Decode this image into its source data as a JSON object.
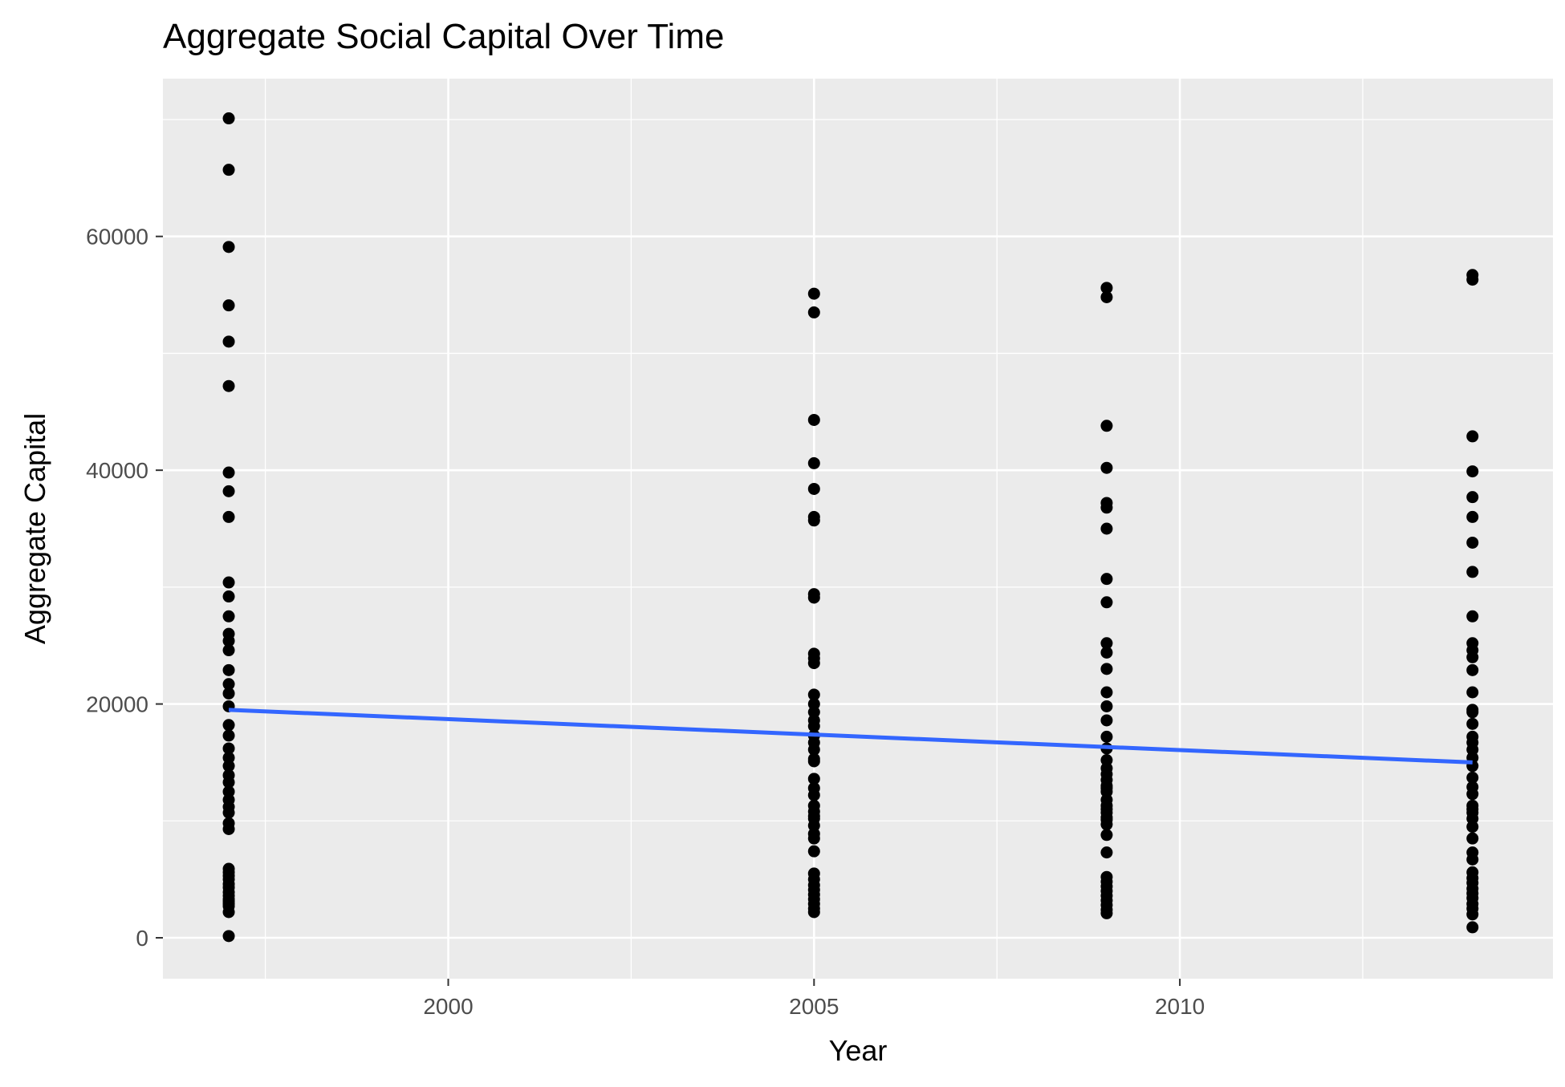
{
  "chart_data": {
    "type": "scatter",
    "title": "Aggregate Social Capital Over Time",
    "xlabel": "Year",
    "ylabel": "Aggregate Capital",
    "xlim": [
      1996.1,
      2015.1
    ],
    "ylim": [
      -3500,
      73500
    ],
    "x_ticks": [
      2000,
      2005,
      2010
    ],
    "y_ticks": [
      0,
      20000,
      40000,
      60000
    ],
    "x_tick_labels": [
      "2000",
      "2005",
      "2010"
    ],
    "y_tick_labels": [
      "0",
      "20000",
      "40000",
      "60000"
    ],
    "grid": true,
    "colors": {
      "panel": "#ebebeb",
      "grid": "#ffffff",
      "points": "#000000",
      "trend": "#3366ff"
    },
    "series": [
      {
        "x": [
          1997,
          1997,
          1997,
          1997,
          1997,
          1997,
          1997,
          1997,
          1997,
          1997,
          1997,
          1997,
          1997,
          1997,
          1997,
          1997,
          1997,
          1997,
          1997,
          1997,
          1997,
          1997,
          1997,
          1997,
          1997,
          1997,
          1997,
          1997,
          1997,
          1997,
          1997,
          1997,
          1997,
          1997,
          1997,
          1997,
          1997,
          1997,
          1997,
          1997,
          1997,
          1997,
          1997,
          1997,
          1997,
          1997,
          2005,
          2005,
          2005,
          2005,
          2005,
          2005,
          2005,
          2005,
          2005,
          2005,
          2005,
          2005,
          2005,
          2005,
          2005,
          2005,
          2005,
          2005,
          2005,
          2005,
          2005,
          2005,
          2005,
          2005,
          2005,
          2005,
          2005,
          2005,
          2005,
          2005,
          2005,
          2005,
          2005,
          2005,
          2005,
          2005,
          2005,
          2005,
          2005,
          2005,
          2005,
          2005,
          2009,
          2009,
          2009,
          2009,
          2009,
          2009,
          2009,
          2009,
          2009,
          2009,
          2009,
          2009,
          2009,
          2009,
          2009,
          2009,
          2009,
          2009,
          2009,
          2009,
          2009,
          2009,
          2009,
          2009,
          2009,
          2009,
          2009,
          2009,
          2009,
          2009,
          2009,
          2009,
          2009,
          2009,
          2009,
          2009,
          2009,
          2009,
          2009,
          2009,
          2009,
          2009,
          2014,
          2014,
          2014,
          2014,
          2014,
          2014,
          2014,
          2014,
          2014,
          2014,
          2014,
          2014,
          2014,
          2014,
          2014,
          2014,
          2014,
          2014,
          2014,
          2014,
          2014,
          2014,
          2014,
          2014,
          2014,
          2014,
          2014,
          2014,
          2014,
          2014,
          2014,
          2014,
          2014,
          2014,
          2014,
          2014,
          2014,
          2014,
          2014,
          2014,
          2014,
          2014,
          2014
        ],
        "y": [
          70100,
          65700,
          59100,
          54100,
          51000,
          47200,
          39800,
          38200,
          36000,
          30400,
          29200,
          27500,
          26000,
          25400,
          24600,
          22900,
          21700,
          20900,
          19800,
          18200,
          17300,
          16200,
          15400,
          14700,
          13900,
          13300,
          12500,
          11800,
          11200,
          10700,
          9800,
          9300,
          5900,
          5600,
          5300,
          5000,
          4600,
          4300,
          3900,
          3600,
          3300,
          3100,
          2900,
          2700,
          150,
          2200,
          55100,
          53500,
          44300,
          40600,
          38400,
          36000,
          35700,
          29400,
          29100,
          24300,
          23900,
          23500,
          20800,
          20000,
          19300,
          18600,
          17300,
          16100,
          15100,
          13600,
          12800,
          12200,
          11300,
          10800,
          10200,
          9600,
          8900,
          8500,
          7400,
          5500,
          5000,
          4500,
          4100,
          3700,
          3300,
          2900,
          2500,
          2200,
          15300,
          16700,
          18100,
          10400,
          55600,
          54800,
          43800,
          40200,
          37200,
          36800,
          35000,
          30700,
          28700,
          25200,
          24400,
          23000,
          21000,
          19800,
          18600,
          17200,
          16200,
          15200,
          14000,
          13500,
          13000,
          12500,
          11800,
          11300,
          10700,
          10100,
          9700,
          8800,
          7300,
          5200,
          4800,
          4400,
          4000,
          3600,
          3200,
          2800,
          2400,
          2100,
          11000,
          12800,
          14500,
          10300,
          56700,
          56300,
          42900,
          39900,
          37700,
          36000,
          33800,
          31300,
          27500,
          25200,
          24600,
          24000,
          22900,
          21000,
          19500,
          18300,
          17200,
          16700,
          16100,
          15400,
          14700,
          13700,
          12900,
          12300,
          11300,
          10700,
          10200,
          9500,
          8500,
          7300,
          6700,
          5600,
          5100,
          4700,
          4200,
          3800,
          3400,
          2900,
          2500,
          2000,
          900,
          19300,
          11000
        ]
      },
      {
        "type": "line",
        "x": [
          1997,
          2014
        ],
        "y": [
          19500,
          15000
        ]
      }
    ]
  }
}
